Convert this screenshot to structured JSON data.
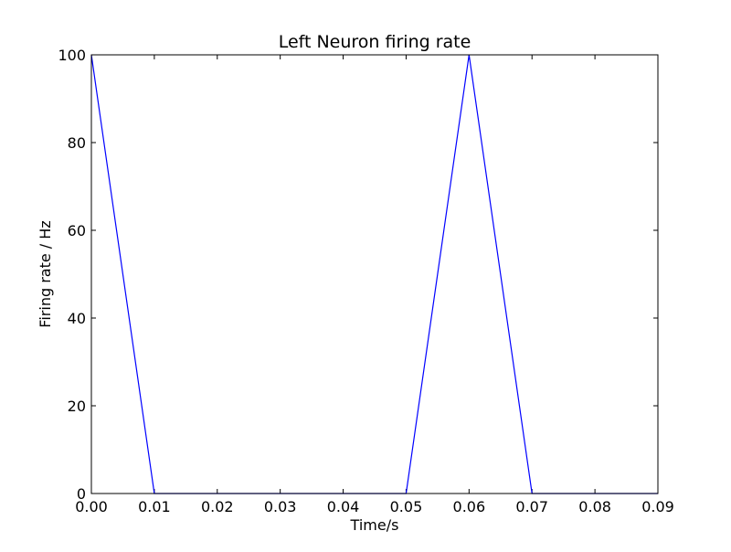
{
  "chart_data": {
    "type": "line",
    "title": "Left Neuron firing rate",
    "xlabel": "Time/s",
    "ylabel": "Firing rate / Hz",
    "xlim": [
      0.0,
      0.09
    ],
    "ylim": [
      0,
      100
    ],
    "xticks": [
      0.0,
      0.01,
      0.02,
      0.03,
      0.04,
      0.05,
      0.06,
      0.07,
      0.08,
      0.09
    ],
    "xtick_labels": [
      "0.00",
      "0.01",
      "0.02",
      "0.03",
      "0.04",
      "0.05",
      "0.06",
      "0.07",
      "0.08",
      "0.09"
    ],
    "yticks": [
      0,
      20,
      40,
      60,
      80,
      100
    ],
    "ytick_labels": [
      "0",
      "20",
      "40",
      "60",
      "80",
      "100"
    ],
    "grid": false,
    "series": [
      {
        "name": "Left Neuron",
        "color": "#0000ff",
        "x": [
          0.0,
          0.01,
          0.02,
          0.03,
          0.04,
          0.05,
          0.06,
          0.07,
          0.08,
          0.09
        ],
        "y": [
          100,
          0,
          0,
          0,
          0,
          0,
          100,
          0,
          0,
          0
        ]
      }
    ]
  }
}
